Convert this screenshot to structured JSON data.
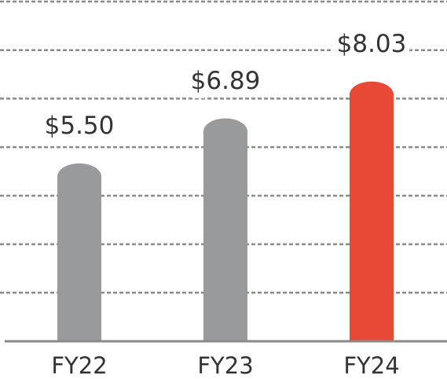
{
  "chart_data": {
    "type": "bar",
    "categories": [
      "FY22",
      "FY23",
      "FY24"
    ],
    "values": [
      5.5,
      6.89,
      8.03
    ],
    "value_labels": [
      "$5.50",
      "$6.89",
      "$8.03"
    ],
    "colors": [
      "#999a9c",
      "#999a9c",
      "#e84a37"
    ],
    "ylim": [
      0,
      10.5
    ],
    "yticks": [
      0,
      1.5,
      3,
      4.5,
      6,
      7.5,
      9,
      10.5
    ],
    "grid": true
  }
}
